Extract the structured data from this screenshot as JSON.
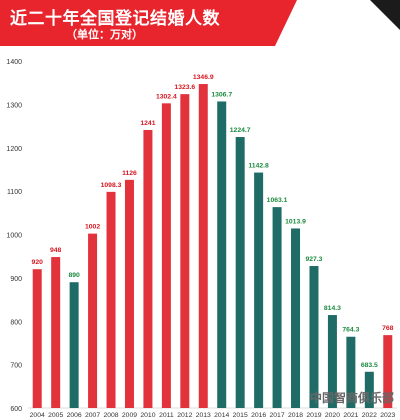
{
  "header": {
    "title": "近二十年全国登记结婚人数",
    "subtitle": "（单位：万对）"
  },
  "watermark": "",
  "source_text": "中国智商俱乐部",
  "colors": {
    "banner": "#e8242d",
    "increase_bar": "#e2323c",
    "decrease_bar": "#1f6b66",
    "increase_label": "#d8151f",
    "decrease_label": "#1a8a3e",
    "axis_text": "#333333"
  },
  "chart_data": {
    "type": "bar",
    "categories": [
      "2004",
      "2005",
      "2006",
      "2007",
      "2008",
      "2009",
      "2010",
      "2011",
      "2012",
      "2013",
      "2014",
      "2015",
      "2016",
      "2017",
      "2018",
      "2019",
      "2020",
      "2021",
      "2022",
      "2023"
    ],
    "values": [
      920,
      948,
      890,
      1002,
      1098.3,
      1126,
      1241,
      1302.4,
      1323.6,
      1346.9,
      1306.7,
      1224.7,
      1142.8,
      1063.1,
      1013.9,
      927.3,
      814.3,
      764.3,
      683.5,
      768
    ],
    "value_labels": [
      "920",
      "948",
      "890",
      "1002",
      "1098.3",
      "1126",
      "1241",
      "1302.4",
      "1323.6",
      "1346.9",
      "1306.7",
      "1224.7",
      "1142.8",
      "1063.1",
      "1013.9",
      "927.3",
      "814.3",
      "764.3",
      "683.5",
      "768"
    ],
    "trend": [
      "up",
      "up",
      "down",
      "up",
      "up",
      "up",
      "up",
      "up",
      "up",
      "up",
      "down",
      "down",
      "down",
      "down",
      "down",
      "down",
      "down",
      "down",
      "down",
      "up"
    ],
    "title": "近二十年全国登记结婚人数",
    "xlabel": "",
    "ylabel": "",
    "ylim": [
      600,
      1400
    ],
    "yticks": [
      "600",
      "700",
      "800",
      "900",
      "1000",
      "1100",
      "1200",
      "1300",
      "1400"
    ],
    "grid": false,
    "legend": "none"
  }
}
